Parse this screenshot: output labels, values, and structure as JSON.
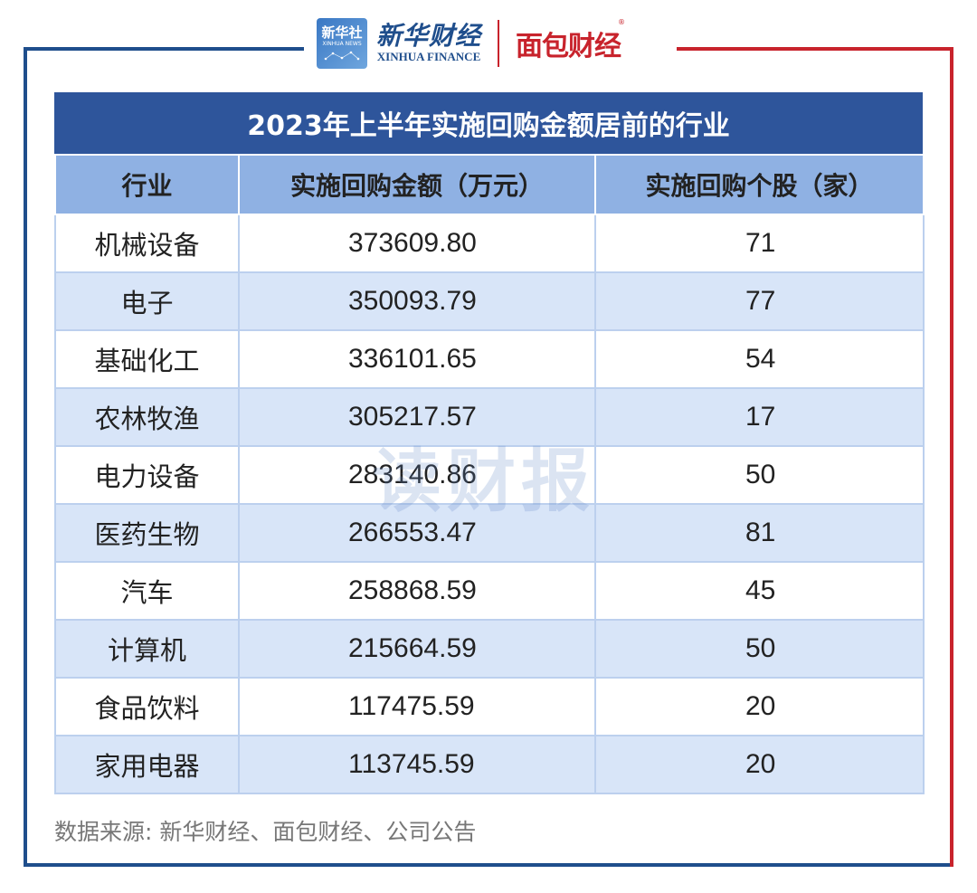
{
  "header": {
    "xinhua_badge_cn": "新华社",
    "xinhua_badge_en": "XINHUA NEWS",
    "xinhua_finance_cn": "新华财经",
    "xinhua_finance_en": "XINHUA FINANCE",
    "mianbao": "面包财经",
    "registered_mark": "®"
  },
  "table": {
    "title": "2023年上半年实施回购金额居前的行业",
    "columns": [
      "行业",
      "实施回购金额（万元）",
      "实施回购个股（家）"
    ],
    "rows": [
      {
        "industry": "机械设备",
        "amount": "373609.80",
        "count": "71"
      },
      {
        "industry": "电子",
        "amount": "350093.79",
        "count": "77"
      },
      {
        "industry": "基础化工",
        "amount": "336101.65",
        "count": "54"
      },
      {
        "industry": "农林牧渔",
        "amount": "305217.57",
        "count": "17"
      },
      {
        "industry": "电力设备",
        "amount": "283140.86",
        "count": "50"
      },
      {
        "industry": "医药生物",
        "amount": "266553.47",
        "count": "81"
      },
      {
        "industry": "汽车",
        "amount": "258868.59",
        "count": "45"
      },
      {
        "industry": "计算机",
        "amount": "215664.59",
        "count": "50"
      },
      {
        "industry": "食品饮料",
        "amount": "117475.59",
        "count": "20"
      },
      {
        "industry": "家用电器",
        "amount": "113745.59",
        "count": "20"
      }
    ]
  },
  "watermark": "读财报",
  "source": "数据来源: 新华财经、面包财经、公司公告",
  "colors": {
    "title_bg": "#2e559b",
    "header_bg": "#8fb1e3",
    "row_alt_bg": "#d8e5f8",
    "frame_blue": "#1f4e8c",
    "frame_red": "#c8232c"
  }
}
